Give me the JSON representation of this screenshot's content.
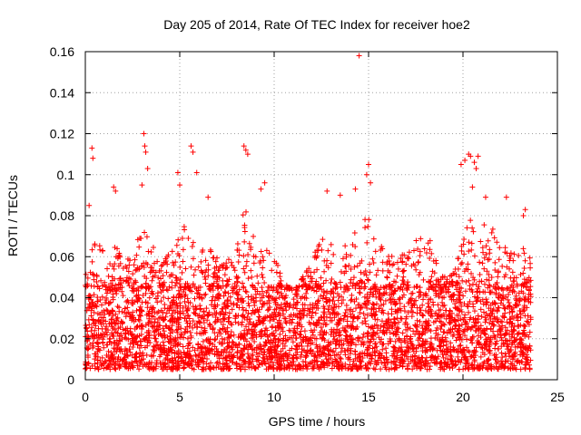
{
  "chart_data": {
    "type": "scatter",
    "title": "Day 205 of 2014, Rate Of TEC Index for receiver hoe2",
    "xlabel": "GPS time / hours",
    "ylabel": "ROTI / TECUs",
    "xlim": [
      0,
      25
    ],
    "ylim": [
      0,
      0.16
    ],
    "x_ticks": [
      0,
      5,
      10,
      15,
      20,
      25
    ],
    "x_tick_labels": [
      "0",
      "5",
      "10",
      "15",
      "20",
      "25"
    ],
    "y_ticks": [
      0,
      0.02,
      0.04,
      0.06,
      0.08,
      0.1,
      0.12,
      0.14,
      0.16
    ],
    "y_tick_labels": [
      "0",
      "0.02",
      "0.04",
      "0.06",
      "0.08",
      "0.1",
      "0.12",
      "0.14",
      "0.16"
    ],
    "grid": true,
    "marker": "+",
    "color": "#ff0000",
    "series": [
      {
        "name": "ROTI",
        "x_range": [
          0,
          23.6
        ],
        "bulk_range": [
          0.005,
          0.045
        ],
        "notable_points": [
          {
            "x": 0.2,
            "y": 0.085
          },
          {
            "x": 0.35,
            "y": 0.113
          },
          {
            "x": 0.4,
            "y": 0.108
          },
          {
            "x": 1.5,
            "y": 0.094
          },
          {
            "x": 1.6,
            "y": 0.092
          },
          {
            "x": 3.1,
            "y": 0.12
          },
          {
            "x": 3.15,
            "y": 0.114
          },
          {
            "x": 3.2,
            "y": 0.111
          },
          {
            "x": 3.3,
            "y": 0.103
          },
          {
            "x": 3.0,
            "y": 0.095
          },
          {
            "x": 4.9,
            "y": 0.101
          },
          {
            "x": 5.0,
            "y": 0.095
          },
          {
            "x": 5.6,
            "y": 0.114
          },
          {
            "x": 5.7,
            "y": 0.111
          },
          {
            "x": 5.9,
            "y": 0.101
          },
          {
            "x": 6.5,
            "y": 0.089
          },
          {
            "x": 8.4,
            "y": 0.114
          },
          {
            "x": 8.5,
            "y": 0.112
          },
          {
            "x": 8.6,
            "y": 0.11
          },
          {
            "x": 9.5,
            "y": 0.096
          },
          {
            "x": 9.3,
            "y": 0.093
          },
          {
            "x": 12.8,
            "y": 0.092
          },
          {
            "x": 13.5,
            "y": 0.09
          },
          {
            "x": 14.5,
            "y": 0.158
          },
          {
            "x": 15.0,
            "y": 0.105
          },
          {
            "x": 14.9,
            "y": 0.1
          },
          {
            "x": 15.1,
            "y": 0.096
          },
          {
            "x": 14.3,
            "y": 0.093
          },
          {
            "x": 19.9,
            "y": 0.105
          },
          {
            "x": 20.1,
            "y": 0.107
          },
          {
            "x": 20.3,
            "y": 0.11
          },
          {
            "x": 20.4,
            "y": 0.109
          },
          {
            "x": 20.6,
            "y": 0.106
          },
          {
            "x": 20.8,
            "y": 0.109
          },
          {
            "x": 20.7,
            "y": 0.103
          },
          {
            "x": 20.5,
            "y": 0.094
          },
          {
            "x": 21.2,
            "y": 0.089
          },
          {
            "x": 22.3,
            "y": 0.089
          },
          {
            "x": 23.3,
            "y": 0.083
          },
          {
            "x": 23.2,
            "y": 0.08
          }
        ],
        "activity_profile": [
          [
            0.0,
            0.055
          ],
          [
            0.5,
            0.07
          ],
          [
            1.0,
            0.062
          ],
          [
            1.5,
            0.068
          ],
          [
            2.0,
            0.058
          ],
          [
            2.5,
            0.062
          ],
          [
            3.0,
            0.075
          ],
          [
            3.5,
            0.07
          ],
          [
            4.0,
            0.06
          ],
          [
            4.5,
            0.062
          ],
          [
            5.0,
            0.075
          ],
          [
            5.5,
            0.078
          ],
          [
            6.0,
            0.07
          ],
          [
            6.5,
            0.065
          ],
          [
            7.0,
            0.06
          ],
          [
            7.5,
            0.058
          ],
          [
            8.0,
            0.07
          ],
          [
            8.5,
            0.09
          ],
          [
            9.0,
            0.07
          ],
          [
            9.5,
            0.068
          ],
          [
            10.0,
            0.06
          ],
          [
            10.5,
            0.05
          ],
          [
            11.0,
            0.04
          ],
          [
            11.5,
            0.05
          ],
          [
            12.0,
            0.065
          ],
          [
            12.5,
            0.072
          ],
          [
            13.0,
            0.068
          ],
          [
            13.5,
            0.062
          ],
          [
            14.0,
            0.07
          ],
          [
            14.5,
            0.075
          ],
          [
            15.0,
            0.08
          ],
          [
            15.5,
            0.072
          ],
          [
            16.0,
            0.065
          ],
          [
            16.5,
            0.06
          ],
          [
            17.0,
            0.062
          ],
          [
            17.5,
            0.072
          ],
          [
            18.0,
            0.078
          ],
          [
            18.5,
            0.06
          ],
          [
            19.0,
            0.05
          ],
          [
            19.5,
            0.052
          ],
          [
            20.0,
            0.07
          ],
          [
            20.5,
            0.08
          ],
          [
            21.0,
            0.075
          ],
          [
            21.5,
            0.078
          ],
          [
            22.0,
            0.07
          ],
          [
            22.5,
            0.065
          ],
          [
            23.0,
            0.068
          ],
          [
            23.6,
            0.06
          ]
        ]
      }
    ]
  }
}
